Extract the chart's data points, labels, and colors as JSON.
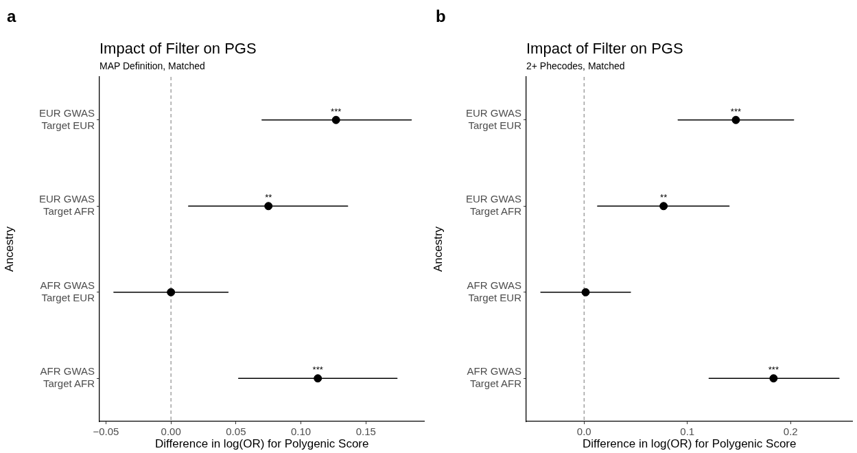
{
  "chart_data": [
    {
      "type": "scatter",
      "orientation": "horizontal",
      "title": "Impact of Filter on PGS",
      "subtitle": "MAP Definition, Matched",
      "xlabel": "Difference in log(OR) for Polygenic Score",
      "ylabel": "Ancestry",
      "categories": [
        "EUR GWAS\nTarget EUR",
        "EUR GWAS\nTarget AFR",
        "AFR GWAS\nTarget EUR",
        "AFR GWAS\nTarget AFR"
      ],
      "series": [
        {
          "color": "#000000",
          "values": [
            0.127,
            0.075,
            0.0,
            0.113
          ],
          "errors": [
            [
              0.07,
              0.185
            ],
            [
              0.0135,
              0.136
            ],
            [
              -0.044,
              0.044
            ],
            [
              0.052,
              0.174
            ]
          ]
        }
      ],
      "xlim": [
        -0.055,
        0.195
      ],
      "xticks": [
        {
          "value": -0.05,
          "label": "−0.05"
        },
        {
          "value": 0,
          "label": "0.00"
        },
        0.05,
        {
          "value": 0.1,
          "label": "0.10"
        },
        0.15
      ],
      "ref_lines": [
        {
          "axis": "x",
          "value": 0,
          "color": "#8c8c8c",
          "line_style": "dashed"
        }
      ],
      "annotations": [
        "a",
        {
          "text": "***",
          "x": 0.127,
          "y": "EUR GWAS\nTarget EUR"
        },
        {
          "text": "**",
          "x": 0.075,
          "y": "EUR GWAS\nTarget AFR"
        },
        {
          "text": "***",
          "x": 0.113,
          "y": "AFR GWAS\nTarget AFR"
        }
      ],
      "marker": "circle",
      "grid": false,
      "legend": false
    },
    {
      "type": "scatter",
      "orientation": "horizontal",
      "title": "Impact of Filter on PGS",
      "subtitle": "2+ Phecodes, Matched",
      "xlabel": "Difference in log(OR) for Polygenic Score",
      "ylabel": "Ancestry",
      "categories": [
        "EUR GWAS\nTarget EUR",
        "EUR GWAS\nTarget AFR",
        "AFR GWAS\nTarget EUR",
        "AFR GWAS\nTarget AFR"
      ],
      "series": [
        {
          "color": "#000000",
          "values": [
            0.147,
            0.077,
            0.0015,
            0.1835
          ],
          "errors": [
            [
              0.091,
              0.203
            ],
            [
              0.013,
              0.1405
            ],
            [
              -0.042,
              0.045
            ],
            [
              0.121,
              0.247
            ]
          ]
        }
      ],
      "xlim": [
        -0.056,
        0.26
      ],
      "xticks": [
        {
          "value": 0,
          "label": "0.0"
        },
        0.1,
        0.2
      ],
      "ref_lines": [
        {
          "axis": "x",
          "value": 0,
          "color": "#8c8c8c",
          "line_style": "dashed"
        }
      ],
      "annotations": [
        "b",
        {
          "text": "***",
          "x": 0.147,
          "y": "EUR GWAS\nTarget EUR"
        },
        {
          "text": "**",
          "x": 0.077,
          "y": "EUR GWAS\nTarget AFR"
        },
        {
          "text": "***",
          "x": 0.1835,
          "y": "AFR GWAS\nTarget AFR"
        }
      ],
      "marker": "circle",
      "grid": false,
      "legend": false
    }
  ]
}
